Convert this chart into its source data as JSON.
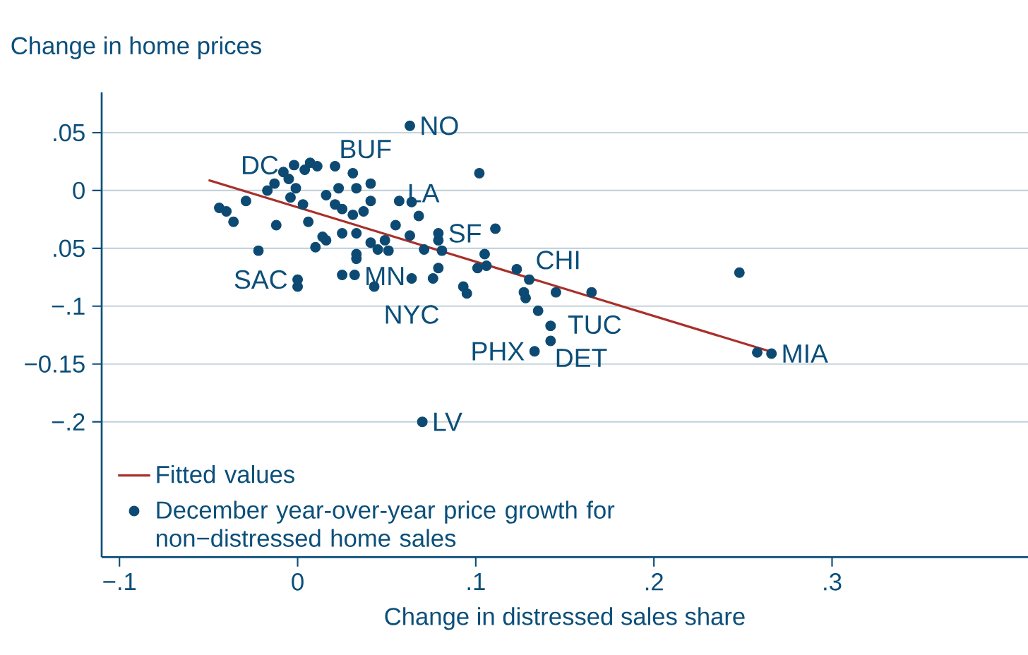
{
  "chart_data": {
    "type": "scatter",
    "xlabel": "Change in distressed sales share",
    "ylabel": "Change in home prices",
    "xlim": [
      -0.11,
      0.41
    ],
    "ylim": [
      -0.317,
      0.085
    ],
    "xticks": [
      {
        "value": -0.1,
        "label": "−.1"
      },
      0,
      {
        "value": 0.1,
        "label": ".1"
      },
      {
        "value": 0.2,
        "label": ".2"
      },
      {
        "value": 0.3,
        "label": ".3"
      }
    ],
    "yticks": [
      {
        "value": 0.05,
        "label": ".05"
      },
      0,
      {
        "value": -0.05,
        "label": ".05"
      },
      {
        "value": -0.1,
        "label": "−.1"
      },
      {
        "value": -0.15,
        "label": "−0.15"
      },
      {
        "value": -0.2,
        "label": "−.2"
      }
    ],
    "grid": "y",
    "legend": "bottom left",
    "series": [
      {
        "name": "Fitted values",
        "type": "line",
        "color": "#a8302b",
        "marker": "none",
        "x": [
          -0.05,
          0.267
        ],
        "values": [
          0.009,
          -0.14
        ]
      },
      {
        "name": "December year-over-year price growth for non−distressed home sales",
        "type": "scatter",
        "color": "#0d4a73",
        "marker": "circle",
        "x": [
          0.063,
          0.102,
          0.111,
          -0.044,
          -0.04,
          -0.036,
          -0.029,
          -0.022,
          -0.012,
          -0.017,
          -0.013,
          -0.008,
          -0.002,
          0.007,
          0.011,
          0.004,
          -0.005,
          -0.001,
          -0.004,
          0.003,
          0.006,
          0.01,
          0.016,
          0,
          0,
          0.023,
          0.021,
          0.025,
          0.031,
          0.033,
          0.041,
          0.041,
          0.031,
          0.037,
          0.025,
          0.033,
          0.033,
          0.033,
          0.025,
          0.032,
          0.043,
          0.041,
          0.049,
          0.055,
          0.057,
          0.064,
          0.068,
          0.063,
          0.071,
          0.079,
          0.081,
          0.064,
          0.076,
          0.079,
          0.093,
          0.095,
          0.105,
          0.101,
          0.014,
          0.016,
          0.045,
          0.051,
          0.106,
          0.123,
          0.13,
          0.127,
          0.128,
          0.135,
          0.142,
          0.142,
          0.133,
          0.145,
          0.165,
          0.248,
          0.258,
          0.266,
          0.07,
          0.079,
          0.021
        ],
        "values": [
          0.056,
          0.015,
          -0.033,
          -0.015,
          -0.018,
          -0.027,
          -0.009,
          -0.052,
          -0.03,
          0,
          0.006,
          0.016,
          0.022,
          0.024,
          0.021,
          0.018,
          0.01,
          0.002,
          -0.006,
          -0.012,
          -0.027,
          -0.049,
          -0.043,
          -0.083,
          -0.077,
          0.002,
          -0.012,
          -0.016,
          0.015,
          0.002,
          0.006,
          -0.009,
          -0.021,
          -0.018,
          -0.037,
          -0.037,
          -0.055,
          -0.059,
          -0.073,
          -0.073,
          -0.083,
          -0.045,
          -0.043,
          -0.03,
          -0.009,
          -0.01,
          -0.022,
          -0.039,
          -0.051,
          -0.043,
          -0.052,
          -0.076,
          -0.076,
          -0.067,
          -0.083,
          -0.089,
          -0.055,
          -0.067,
          -0.04,
          -0.004,
          -0.051,
          -0.052,
          -0.065,
          -0.068,
          -0.077,
          -0.088,
          -0.093,
          -0.104,
          -0.117,
          -0.13,
          -0.139,
          -0.088,
          -0.088,
          -0.071,
          -0.14,
          -0.141,
          -0.2,
          -0.037,
          0.021
        ]
      }
    ],
    "annotations": [
      {
        "text": "NO",
        "x": 0.063,
        "y": 0.056
      },
      {
        "text": "BUF",
        "x": 0.021,
        "y": 0.021
      },
      {
        "text": "DC",
        "x": -0.004,
        "y": -0.006
      },
      {
        "text": "LA",
        "x": 0.055,
        "y": -0.03
      },
      {
        "text": "SF",
        "x": 0.079,
        "y": -0.037
      },
      {
        "text": "MN",
        "x": 0.049,
        "y": -0.043
      },
      {
        "text": "NYC",
        "x": 0.064,
        "y": -0.076
      },
      {
        "text": "SAC",
        "x": 0,
        "y": -0.077
      },
      {
        "text": "CHI",
        "x": 0.127,
        "y": -0.088
      },
      {
        "text": "TUC",
        "x": 0.145,
        "y": -0.088
      },
      {
        "text": "DET",
        "x": 0.142,
        "y": -0.13
      },
      {
        "text": "PHX",
        "x": 0.133,
        "y": -0.139
      },
      {
        "text": "MIA",
        "x": 0.266,
        "y": -0.141
      },
      {
        "text": "LV",
        "x": 0.07,
        "y": -0.2
      }
    ]
  }
}
